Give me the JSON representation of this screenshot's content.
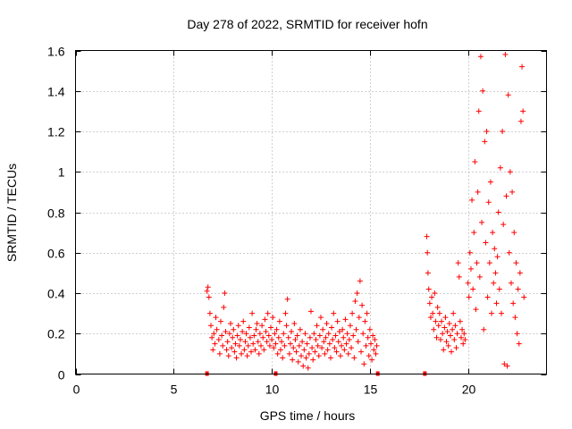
{
  "chart_data": {
    "type": "scatter",
    "title": "Day 278 of 2022, SRMTID for receiver hofn",
    "xlabel": "GPS time / hours",
    "ylabel": "SRMTID / TECUs",
    "xlim": [
      0,
      24
    ],
    "ylim": [
      0,
      1.6
    ],
    "x_ticks": [
      0,
      5,
      10,
      15,
      20
    ],
    "y_ticks": [
      0,
      0.2,
      0.4,
      0.6,
      0.8,
      1,
      1.2,
      1.4,
      1.6
    ],
    "x_tick_labels": [
      "0",
      "5",
      "10",
      "15",
      "20"
    ],
    "y_tick_labels": [
      "0",
      "0.2",
      "0.4",
      "0.6",
      "0.8",
      "1",
      "1.2",
      "1.4",
      "1.6"
    ],
    "grid": true,
    "marker": "plus",
    "color": "#ff0000",
    "series": [
      {
        "name": "SRMTID",
        "points": [
          [
            6.7,
            0.41
          ],
          [
            6.75,
            0.43
          ],
          [
            6.8,
            0.38
          ],
          [
            6.85,
            0.3
          ],
          [
            6.9,
            0.24
          ],
          [
            6.95,
            0.18
          ],
          [
            7.0,
            0.12
          ],
          [
            7.05,
            0.2
          ],
          [
            7.1,
            0.15
          ],
          [
            7.15,
            0.28
          ],
          [
            7.2,
            0.22
          ],
          [
            7.3,
            0.17
          ],
          [
            7.35,
            0.1
          ],
          [
            7.4,
            0.26
          ],
          [
            7.45,
            0.19
          ],
          [
            7.5,
            0.14
          ],
          [
            7.55,
            0.33
          ],
          [
            7.6,
            0.4
          ],
          [
            7.65,
            0.21
          ],
          [
            7.7,
            0.12
          ],
          [
            7.75,
            0.16
          ],
          [
            7.8,
            0.09
          ],
          [
            7.85,
            0.2
          ],
          [
            7.9,
            0.25
          ],
          [
            7.95,
            0.13
          ],
          [
            8.0,
            0.18
          ],
          [
            8.05,
            0.22
          ],
          [
            8.1,
            0.11
          ],
          [
            8.15,
            0.15
          ],
          [
            8.2,
            0.08
          ],
          [
            8.25,
            0.19
          ],
          [
            8.3,
            0.24
          ],
          [
            8.35,
            0.14
          ],
          [
            8.4,
            0.17
          ],
          [
            8.45,
            0.1
          ],
          [
            8.5,
            0.21
          ],
          [
            8.55,
            0.26
          ],
          [
            8.6,
            0.12
          ],
          [
            8.65,
            0.16
          ],
          [
            8.7,
            0.2
          ],
          [
            8.75,
            0.09
          ],
          [
            8.8,
            0.14
          ],
          [
            8.85,
            0.23
          ],
          [
            8.9,
            0.18
          ],
          [
            8.95,
            0.11
          ],
          [
            9.0,
            0.3
          ],
          [
            9.05,
            0.15
          ],
          [
            9.1,
            0.19
          ],
          [
            9.15,
            0.12
          ],
          [
            9.2,
            0.22
          ],
          [
            9.25,
            0.25
          ],
          [
            9.3,
            0.16
          ],
          [
            9.35,
            0.1
          ],
          [
            9.4,
            0.2
          ],
          [
            9.45,
            0.14
          ],
          [
            9.5,
            0.24
          ],
          [
            9.55,
            0.18
          ],
          [
            9.6,
            0.12
          ],
          [
            9.65,
            0.27
          ],
          [
            9.7,
            0.21
          ],
          [
            9.75,
            0.16
          ],
          [
            9.8,
            0.3
          ],
          [
            9.85,
            0.19
          ],
          [
            9.9,
            0.14
          ],
          [
            9.95,
            0.23
          ],
          [
            10.0,
            0.17
          ],
          [
            10.05,
            0.28
          ],
          [
            10.1,
            0.13
          ],
          [
            10.15,
            0.2
          ],
          [
            10.2,
            0.15
          ],
          [
            10.25,
            0.22
          ],
          [
            10.3,
            0.1
          ],
          [
            10.35,
            0.18
          ],
          [
            10.4,
            0.26
          ],
          [
            10.45,
            0.12
          ],
          [
            10.5,
            0.16
          ],
          [
            10.55,
            0.08
          ],
          [
            10.6,
            0.2
          ],
          [
            10.65,
            0.14
          ],
          [
            10.7,
            0.3
          ],
          [
            10.75,
            0.24
          ],
          [
            10.8,
            0.37
          ],
          [
            10.85,
            0.18
          ],
          [
            10.9,
            0.1
          ],
          [
            10.95,
            0.15
          ],
          [
            11.0,
            0.21
          ],
          [
            11.05,
            0.07
          ],
          [
            11.1,
            0.13
          ],
          [
            11.15,
            0.25
          ],
          [
            11.2,
            0.17
          ],
          [
            11.25,
            0.11
          ],
          [
            11.3,
            0.19
          ],
          [
            11.35,
            0.06
          ],
          [
            11.4,
            0.14
          ],
          [
            11.45,
            0.22
          ],
          [
            11.5,
            0.09
          ],
          [
            11.55,
            0.16
          ],
          [
            11.6,
            0.04
          ],
          [
            11.65,
            0.12
          ],
          [
            11.7,
            0.2
          ],
          [
            11.75,
            0.08
          ],
          [
            11.8,
            0.15
          ],
          [
            11.85,
            0.03
          ],
          [
            11.9,
            0.1
          ],
          [
            11.95,
            0.18
          ],
          [
            12.0,
            0.31
          ],
          [
            12.05,
            0.13
          ],
          [
            12.1,
            0.07
          ],
          [
            12.15,
            0.2
          ],
          [
            12.2,
            0.11
          ],
          [
            12.25,
            0.17
          ],
          [
            12.3,
            0.24
          ],
          [
            12.35,
            0.14
          ],
          [
            12.4,
            0.09
          ],
          [
            12.45,
            0.19
          ],
          [
            12.5,
            0.28
          ],
          [
            12.55,
            0.13
          ],
          [
            12.6,
            0.22
          ],
          [
            12.65,
            0.16
          ],
          [
            12.7,
            0.1
          ],
          [
            12.75,
            0.18
          ],
          [
            12.8,
            0.25
          ],
          [
            12.85,
            0.12
          ],
          [
            12.9,
            0.2
          ],
          [
            12.95,
            0.15
          ],
          [
            13.0,
            0.08
          ],
          [
            13.05,
            0.23
          ],
          [
            13.1,
            0.17
          ],
          [
            13.15,
            0.3
          ],
          [
            13.2,
            0.13
          ],
          [
            13.25,
            0.19
          ],
          [
            13.3,
            0.11
          ],
          [
            13.35,
            0.26
          ],
          [
            13.4,
            0.16
          ],
          [
            13.45,
            0.21
          ],
          [
            13.5,
            0.09
          ],
          [
            13.55,
            0.14
          ],
          [
            13.6,
            0.22
          ],
          [
            13.65,
            0.18
          ],
          [
            13.7,
            0.12
          ],
          [
            13.75,
            0.27
          ],
          [
            13.8,
            0.15
          ],
          [
            13.85,
            0.2
          ],
          [
            13.9,
            0.1
          ],
          [
            13.95,
            0.17
          ],
          [
            14.0,
            0.24
          ],
          [
            14.05,
            0.13
          ],
          [
            14.1,
            0.3
          ],
          [
            14.15,
            0.19
          ],
          [
            14.2,
            0.08
          ],
          [
            14.25,
            0.36
          ],
          [
            14.3,
            0.22
          ],
          [
            14.35,
            0.4
          ],
          [
            14.4,
            0.16
          ],
          [
            14.45,
            0.28
          ],
          [
            14.5,
            0.46
          ],
          [
            14.55,
            0.11
          ],
          [
            14.6,
            0.34
          ],
          [
            14.65,
            0.2
          ],
          [
            14.7,
            0.05
          ],
          [
            14.75,
            0.26
          ],
          [
            14.8,
            0.14
          ],
          [
            14.85,
            0.3
          ],
          [
            14.9,
            0.18
          ],
          [
            14.95,
            0.09
          ],
          [
            15.0,
            0.22
          ],
          [
            15.05,
            0.15
          ],
          [
            15.1,
            0.07
          ],
          [
            15.15,
            0.19
          ],
          [
            15.2,
            0.12
          ],
          [
            15.25,
            0.17
          ],
          [
            15.3,
            0.1
          ],
          [
            15.35,
            0.14
          ],
          [
            17.9,
            0.68
          ],
          [
            17.93,
            0.6
          ],
          [
            17.96,
            0.5
          ],
          [
            18.0,
            0.42
          ],
          [
            18.05,
            0.35
          ],
          [
            18.1,
            0.28
          ],
          [
            18.15,
            0.38
          ],
          [
            18.2,
            0.3
          ],
          [
            18.25,
            0.22
          ],
          [
            18.3,
            0.4
          ],
          [
            18.35,
            0.26
          ],
          [
            18.4,
            0.18
          ],
          [
            18.45,
            0.33
          ],
          [
            18.5,
            0.24
          ],
          [
            18.55,
            0.3
          ],
          [
            18.6,
            0.17
          ],
          [
            18.65,
            0.26
          ],
          [
            18.7,
            0.2
          ],
          [
            18.75,
            0.12
          ],
          [
            18.8,
            0.23
          ],
          [
            18.85,
            0.28
          ],
          [
            18.9,
            0.16
          ],
          [
            18.95,
            0.21
          ],
          [
            19.0,
            0.14
          ],
          [
            19.05,
            0.25
          ],
          [
            19.1,
            0.19
          ],
          [
            19.15,
            0.11
          ],
          [
            19.2,
            0.22
          ],
          [
            19.25,
            0.3
          ],
          [
            19.3,
            0.17
          ],
          [
            19.35,
            0.24
          ],
          [
            19.4,
            0.13
          ],
          [
            19.45,
            0.2
          ],
          [
            19.5,
            0.55
          ],
          [
            19.55,
            0.48
          ],
          [
            19.6,
            0.26
          ],
          [
            19.65,
            0.18
          ],
          [
            19.7,
            0.22
          ],
          [
            19.75,
            0.15
          ],
          [
            19.8,
            0.2
          ],
          [
            19.85,
            0.17
          ],
          [
            20.0,
            0.45
          ],
          [
            20.05,
            0.38
          ],
          [
            20.1,
            0.6
          ],
          [
            20.15,
            0.52
          ],
          [
            20.2,
            0.86
          ],
          [
            20.25,
            0.42
          ],
          [
            20.3,
            0.7
          ],
          [
            20.35,
            1.05
          ],
          [
            20.4,
            0.32
          ],
          [
            20.45,
            0.55
          ],
          [
            20.5,
            0.9
          ],
          [
            20.55,
            1.3
          ],
          [
            20.6,
            0.48
          ],
          [
            20.65,
            1.57
          ],
          [
            20.7,
            0.75
          ],
          [
            20.75,
            1.4
          ],
          [
            20.8,
            0.22
          ],
          [
            20.85,
            1.15
          ],
          [
            20.9,
            0.65
          ],
          [
            20.95,
            1.2
          ],
          [
            21.0,
            0.38
          ],
          [
            21.05,
            0.85
          ],
          [
            21.1,
            0.55
          ],
          [
            21.15,
            0.95
          ],
          [
            21.2,
            0.3
          ],
          [
            21.25,
            0.7
          ],
          [
            21.3,
            0.45
          ],
          [
            21.35,
            0.62
          ],
          [
            21.4,
            0.5
          ],
          [
            21.45,
            0.35
          ],
          [
            21.5,
            0.58
          ],
          [
            21.55,
            0.8
          ],
          [
            21.6,
            0.42
          ],
          [
            21.65,
            1.02
          ],
          [
            21.7,
            0.3
          ],
          [
            21.75,
            1.2
          ],
          [
            21.8,
            0.74
          ],
          [
            21.85,
            0.05
          ],
          [
            21.9,
            1.58
          ],
          [
            21.95,
            0.88
          ],
          [
            22.0,
            0.04
          ],
          [
            22.05,
            1.38
          ],
          [
            22.1,
            0.6
          ],
          [
            22.15,
            1.0
          ],
          [
            22.2,
            0.45
          ],
          [
            22.25,
            0.9
          ],
          [
            22.3,
            0.35
          ],
          [
            22.35,
            0.7
          ],
          [
            22.4,
            0.28
          ],
          [
            22.45,
            0.55
          ],
          [
            22.5,
            0.2
          ],
          [
            22.55,
            0.42
          ],
          [
            22.6,
            0.15
          ],
          [
            22.65,
            0.5
          ],
          [
            22.7,
            1.25
          ],
          [
            22.75,
            1.52
          ],
          [
            22.8,
            1.3
          ],
          [
            22.85,
            0.38
          ]
        ]
      }
    ],
    "axis_markers_x": [
      6.7,
      10.2,
      15.4,
      17.8
    ]
  }
}
